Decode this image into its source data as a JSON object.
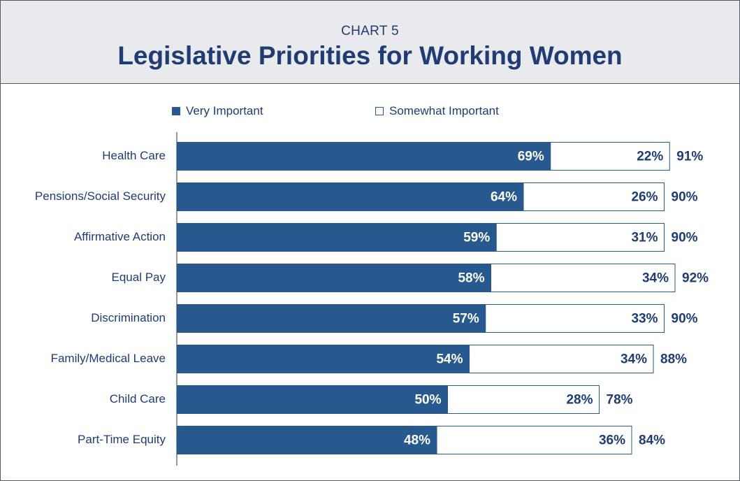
{
  "header": {
    "kicker": "CHART 5",
    "title": "Legislative Priorities for Working Women"
  },
  "colors": {
    "very": "#27598e",
    "somewhat": "#ffffff",
    "text": "#1f3c73",
    "header_bg": "#e9eaee"
  },
  "chart_data": {
    "type": "bar",
    "orientation": "horizontal",
    "stacked": true,
    "title": "Legislative Priorities for Working Women",
    "categories": [
      "Health Care",
      "Pensions/Social Security",
      "Affirmative Action",
      "Equal Pay",
      "Discrimination",
      "Family/Medical Leave",
      "Child Care",
      "Part-Time Equity"
    ],
    "series": [
      {
        "name": "Very Important",
        "values": [
          69,
          64,
          59,
          58,
          57,
          54,
          50,
          48
        ],
        "labels": [
          "69%",
          "64%",
          "59%",
          "58%",
          "57%",
          "54%",
          "50%",
          "48%"
        ]
      },
      {
        "name": "Somewhat Important",
        "values": [
          22,
          26,
          31,
          34,
          33,
          34,
          28,
          36
        ],
        "labels": [
          "22%",
          "26%",
          "31%",
          "34%",
          "33%",
          "34%",
          "28%",
          "36%"
        ]
      }
    ],
    "totals": [
      "91%",
      "90%",
      "90%",
      "92%",
      "90%",
      "88%",
      "78%",
      "84%"
    ],
    "xlim": [
      0,
      100
    ],
    "legend": "top",
    "grid": false
  }
}
